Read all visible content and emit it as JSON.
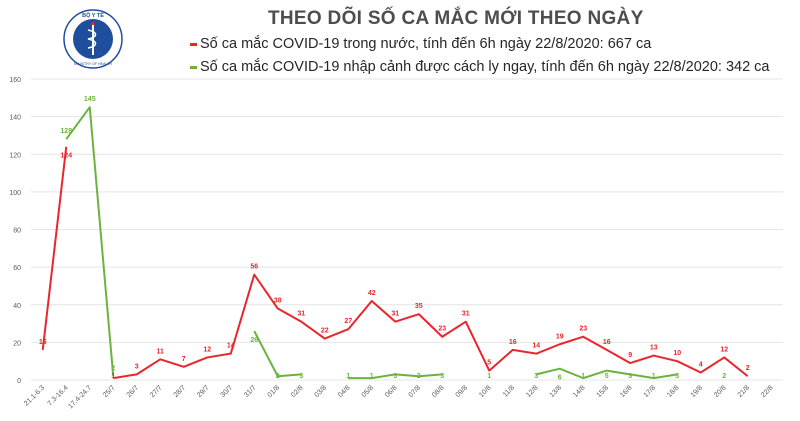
{
  "header": {
    "title": "THEO DÕI SỐ CA MẮC MỚI THEO NGÀY"
  },
  "logo": {
    "icon": "ministry-of-health-emblem-icon",
    "top_text": "BỘ Y TẾ",
    "bottom_text": "MINISTRY OF HEALTH"
  },
  "legend": {
    "domestic": "Số ca mắc COVID-19 trong nước, tính đến 6h ngày 22/8/2020: 667 ca",
    "imported": "Số ca mắc COVID-19 nhập cảnh được cách ly ngay, tính đến 6h ngày 22/8/2020: 342 ca"
  },
  "colors": {
    "domestic": "#e8262b",
    "imported": "#6bb33f",
    "grid": "#e4e4e4",
    "axis_text": "#595959"
  },
  "chart_data": {
    "type": "line",
    "title": "THEO DÕI SỐ CA MẮC MỚI THEO NGÀY",
    "xlabel": "",
    "ylabel": "",
    "ylim": [
      0,
      160
    ],
    "yticks": [
      0,
      20,
      40,
      60,
      80,
      100,
      120,
      140,
      160
    ],
    "grid": true,
    "legend_position": "top",
    "categories": [
      "21.1-6.3",
      "7.3-16.4",
      "17.4-24.7",
      "25/7",
      "26/7",
      "27/7",
      "28/7",
      "29/7",
      "30/7",
      "31/7",
      "01/8",
      "02/8",
      "03/8",
      "04/8",
      "05/8",
      "06/8",
      "07/8",
      "08/8",
      "09/8",
      "10/8",
      "11/8",
      "12/8",
      "13/8",
      "14/8",
      "15/8",
      "16/8",
      "17/8",
      "18/8",
      "19/8",
      "20/8",
      "21/8",
      "22/8"
    ],
    "series": [
      {
        "name": "Số ca mắc COVID-19 trong nước, tính đến 6h ngày 22/8/2020: 667 ca",
        "color": "#e8262b",
        "values": [
          16,
          124,
          null,
          1,
          3,
          11,
          7,
          12,
          14,
          56,
          38,
          31,
          22,
          27,
          42,
          31,
          35,
          23,
          31,
          5,
          16,
          14,
          19,
          23,
          16,
          9,
          13,
          10,
          4,
          12,
          2,
          null
        ]
      },
      {
        "name": "Số ca mắc COVID-19 nhập cảnh được cách ly ngay, tính đến 6h ngày 22/8/2020: 342 ca",
        "color": "#6bb33f",
        "values": [
          null,
          128,
          145,
          2,
          null,
          null,
          null,
          null,
          null,
          26,
          2,
          3,
          null,
          1,
          1,
          3,
          2,
          3,
          null,
          1,
          null,
          3,
          6,
          1,
          5,
          3,
          1,
          3,
          null,
          2,
          null,
          null
        ]
      }
    ]
  }
}
